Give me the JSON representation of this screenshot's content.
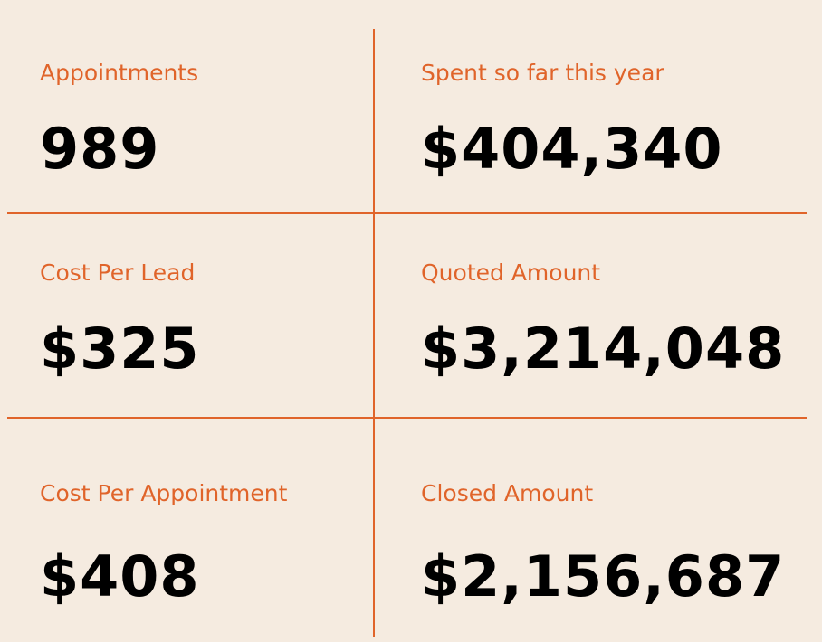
{
  "colors": {
    "background": "#f5ebe0",
    "accent": "#e0642a",
    "value_text": "#000000"
  },
  "metrics": [
    {
      "label": "Appointments",
      "value": "989"
    },
    {
      "label": "Spent so far this year",
      "value": "$404,340"
    },
    {
      "label": "Cost Per Lead",
      "value": "$325"
    },
    {
      "label": "Quoted Amount",
      "value": "$3,214,048"
    },
    {
      "label": "Cost Per Appointment",
      "value": "$408"
    },
    {
      "label": "Closed Amount",
      "value": "$2,156,687"
    }
  ]
}
